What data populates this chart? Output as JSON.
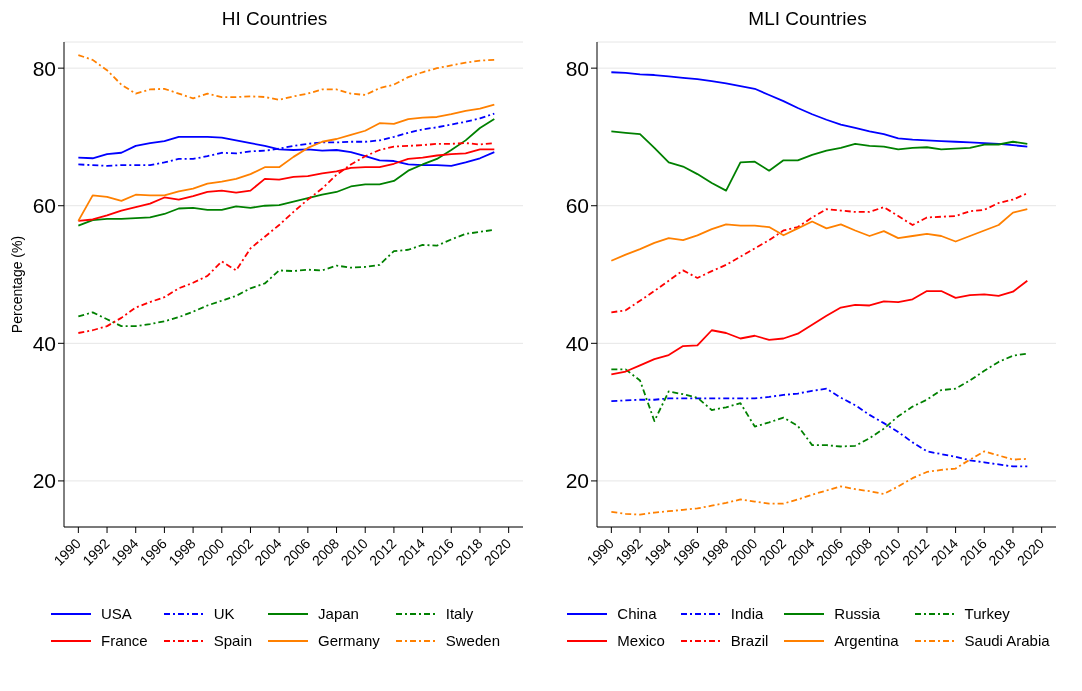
{
  "chart_data": [
    {
      "type": "line",
      "title": "HI Countries",
      "ylabel": "Percentage (%)",
      "grid": "y",
      "legend": "bottom",
      "x": [
        1990,
        1991,
        1992,
        1993,
        1994,
        1995,
        1996,
        1997,
        1998,
        1999,
        2000,
        2001,
        2002,
        2003,
        2004,
        2005,
        2006,
        2007,
        2008,
        2009,
        2010,
        2011,
        2012,
        2013,
        2014,
        2015,
        2016,
        2017,
        2018,
        2019
      ],
      "xlim": [
        1989,
        2021
      ],
      "xticks": [
        1990,
        1992,
        1994,
        1996,
        1998,
        2000,
        2002,
        2004,
        2006,
        2008,
        2010,
        2012,
        2014,
        2016,
        2018,
        2020
      ],
      "ylim": [
        13.3,
        83.8
      ],
      "yticks": [
        20,
        40,
        60,
        80
      ],
      "series": [
        {
          "name": "USA",
          "color": "#0000ff",
          "line_style": "solid",
          "values": [
            67.0,
            66.9,
            67.5,
            67.7,
            68.7,
            69.1,
            69.4,
            70.0,
            70.0,
            70.0,
            69.9,
            69.5,
            69.1,
            68.7,
            68.2,
            68.1,
            68.2,
            68.0,
            68.1,
            67.8,
            67.2,
            66.6,
            66.5,
            66.0,
            65.9,
            65.9,
            65.8,
            66.3,
            66.9,
            67.8
          ]
        },
        {
          "name": "UK",
          "color": "#0000ff",
          "line_style": "dashdot",
          "values": [
            66.0,
            65.9,
            65.8,
            65.9,
            65.9,
            65.9,
            66.3,
            66.8,
            66.8,
            67.2,
            67.7,
            67.6,
            67.9,
            68.0,
            68.3,
            68.7,
            69.0,
            69.2,
            69.2,
            69.3,
            69.3,
            69.5,
            70.0,
            70.6,
            71.1,
            71.4,
            71.8,
            72.2,
            72.7,
            73.4
          ]
        },
        {
          "name": "Japan",
          "color": "#008000",
          "line_style": "solid",
          "values": [
            57.1,
            57.9,
            58.1,
            58.1,
            58.2,
            58.3,
            58.8,
            59.6,
            59.7,
            59.4,
            59.4,
            59.9,
            59.7,
            60.0,
            60.1,
            60.6,
            61.1,
            61.6,
            62.0,
            62.8,
            63.1,
            63.1,
            63.6,
            65.1,
            66.0,
            66.8,
            68.1,
            69.5,
            71.3,
            72.6
          ]
        },
        {
          "name": "Italy",
          "color": "#008000",
          "line_style": "dashdot",
          "values": [
            43.9,
            44.5,
            43.5,
            42.5,
            42.5,
            42.8,
            43.2,
            43.8,
            44.6,
            45.5,
            46.2,
            46.9,
            48.0,
            48.7,
            50.6,
            50.5,
            50.7,
            50.6,
            51.3,
            51.0,
            51.1,
            51.4,
            53.4,
            53.6,
            54.3,
            54.2,
            55.1,
            55.9,
            56.2,
            56.5
          ]
        },
        {
          "name": "France",
          "color": "#ff0000",
          "line_style": "solid",
          "values": [
            57.8,
            58.0,
            58.6,
            59.3,
            59.8,
            60.3,
            61.2,
            60.9,
            61.4,
            62.0,
            62.2,
            61.9,
            62.2,
            63.9,
            63.8,
            64.2,
            64.3,
            64.7,
            65.0,
            65.5,
            65.6,
            65.6,
            66.1,
            66.8,
            67.0,
            67.3,
            67.5,
            67.6,
            68.2,
            68.2
          ]
        },
        {
          "name": "Spain",
          "color": "#ff0000",
          "line_style": "dashdot",
          "values": [
            41.5,
            41.9,
            42.5,
            43.7,
            45.2,
            46.0,
            46.7,
            48.0,
            48.8,
            49.8,
            51.9,
            50.6,
            53.8,
            55.5,
            57.2,
            59.1,
            60.9,
            62.5,
            64.5,
            66.0,
            67.2,
            68.1,
            68.6,
            68.7,
            68.8,
            69.0,
            69.0,
            69.1,
            68.9,
            69.1
          ]
        },
        {
          "name": "Germany",
          "color": "#ff8000",
          "line_style": "solid",
          "values": [
            57.8,
            61.5,
            61.3,
            60.7,
            61.6,
            61.5,
            61.5,
            62.1,
            62.5,
            63.2,
            63.5,
            63.9,
            64.6,
            65.6,
            65.6,
            67.1,
            68.4,
            69.3,
            69.7,
            70.3,
            70.9,
            72.0,
            71.9,
            72.6,
            72.8,
            72.9,
            73.3,
            73.8,
            74.1,
            74.7
          ]
        },
        {
          "name": "Sweden",
          "color": "#ff8000",
          "line_style": "dashdot",
          "values": [
            81.9,
            81.2,
            79.7,
            77.6,
            76.3,
            76.9,
            77.0,
            76.3,
            75.6,
            76.3,
            75.8,
            75.8,
            75.9,
            75.8,
            75.4,
            75.9,
            76.3,
            76.9,
            76.9,
            76.3,
            76.1,
            77.1,
            77.6,
            78.7,
            79.4,
            80.0,
            80.4,
            80.8,
            81.1,
            81.2
          ]
        }
      ]
    },
    {
      "type": "line",
      "title": "MLI Countries",
      "grid": "y",
      "legend": "bottom",
      "x": [
        1990,
        1991,
        1992,
        1993,
        1994,
        1995,
        1996,
        1997,
        1998,
        1999,
        2000,
        2001,
        2002,
        2003,
        2004,
        2005,
        2006,
        2007,
        2008,
        2009,
        2010,
        2011,
        2012,
        2013,
        2014,
        2015,
        2016,
        2017,
        2018,
        2019
      ],
      "xlim": [
        1989,
        2021
      ],
      "xticks": [
        1990,
        1992,
        1994,
        1996,
        1998,
        2000,
        2002,
        2004,
        2006,
        2008,
        2010,
        2012,
        2014,
        2016,
        2018,
        2020
      ],
      "ylim": [
        13.3,
        83.8
      ],
      "yticks": [
        20,
        40,
        60,
        80
      ],
      "series": [
        {
          "name": "China",
          "color": "#0000ff",
          "line_style": "solid",
          "values": [
            79.4,
            79.3,
            79.1,
            79.0,
            78.8,
            78.6,
            78.4,
            78.1,
            77.8,
            77.4,
            77.0,
            76.1,
            75.2,
            74.2,
            73.3,
            72.5,
            71.8,
            71.3,
            70.8,
            70.4,
            69.8,
            69.6,
            69.5,
            69.4,
            69.3,
            69.2,
            69.1,
            69.0,
            68.8,
            68.6
          ]
        },
        {
          "name": "India",
          "color": "#0000ff",
          "line_style": "dashdot",
          "values": [
            31.6,
            31.7,
            31.8,
            31.8,
            32.0,
            32.0,
            32.0,
            32.0,
            32.0,
            32.0,
            32.0,
            32.2,
            32.5,
            32.7,
            33.1,
            33.4,
            32.1,
            31.0,
            29.6,
            28.4,
            27.1,
            25.6,
            24.3,
            23.9,
            23.5,
            23.0,
            22.7,
            22.4,
            22.1,
            22.1
          ]
        },
        {
          "name": "Russia",
          "color": "#008000",
          "line_style": "solid",
          "values": [
            70.8,
            70.6,
            70.4,
            68.4,
            66.3,
            65.7,
            64.6,
            63.3,
            62.2,
            66.3,
            66.4,
            65.1,
            66.6,
            66.6,
            67.4,
            68.0,
            68.4,
            69.0,
            68.7,
            68.6,
            68.2,
            68.4,
            68.5,
            68.2,
            68.3,
            68.4,
            68.9,
            68.9,
            69.3,
            69.0
          ]
        },
        {
          "name": "Turkey",
          "color": "#008000",
          "line_style": "dashdot",
          "values": [
            36.2,
            36.2,
            34.6,
            28.7,
            33.0,
            32.6,
            32.1,
            30.3,
            30.7,
            31.3,
            27.9,
            28.5,
            29.2,
            28.0,
            25.2,
            25.2,
            25.0,
            25.1,
            26.2,
            27.6,
            29.4,
            30.8,
            31.8,
            33.2,
            33.4,
            34.6,
            36.0,
            37.3,
            38.2,
            38.5
          ]
        },
        {
          "name": "Mexico",
          "color": "#ff0000",
          "line_style": "solid",
          "values": [
            35.5,
            35.9,
            36.8,
            37.7,
            38.3,
            39.6,
            39.7,
            41.9,
            41.5,
            40.7,
            41.1,
            40.5,
            40.7,
            41.4,
            42.7,
            44.0,
            45.2,
            45.6,
            45.5,
            46.1,
            46.0,
            46.4,
            47.6,
            47.6,
            46.6,
            47.0,
            47.1,
            46.9,
            47.5,
            49.1
          ]
        },
        {
          "name": "Brazil",
          "color": "#ff0000",
          "line_style": "dashdot",
          "values": [
            44.5,
            44.8,
            46.2,
            47.6,
            49.1,
            50.6,
            49.5,
            50.5,
            51.4,
            52.6,
            53.8,
            55.0,
            56.4,
            56.9,
            58.3,
            59.5,
            59.3,
            59.1,
            59.1,
            59.8,
            58.5,
            57.2,
            58.3,
            58.4,
            58.5,
            59.2,
            59.4,
            60.4,
            60.9,
            61.8
          ]
        },
        {
          "name": "Argentina",
          "color": "#ff8000",
          "line_style": "solid",
          "values": [
            52.0,
            52.9,
            53.7,
            54.6,
            55.3,
            55.0,
            55.7,
            56.6,
            57.3,
            57.1,
            57.1,
            56.9,
            55.7,
            56.7,
            57.7,
            56.7,
            57.3,
            56.4,
            55.6,
            56.3,
            55.3,
            55.6,
            55.9,
            55.6,
            54.8,
            55.6,
            56.4,
            57.2,
            59.0,
            59.5
          ]
        },
        {
          "name": "Saudi Arabia",
          "color": "#ff8000",
          "line_style": "dashdot",
          "values": [
            15.5,
            15.2,
            15.1,
            15.4,
            15.6,
            15.8,
            16.0,
            16.4,
            16.8,
            17.3,
            17.0,
            16.7,
            16.7,
            17.3,
            18.0,
            18.6,
            19.2,
            18.8,
            18.5,
            18.1,
            19.2,
            20.4,
            21.3,
            21.6,
            21.8,
            23.1,
            24.3,
            23.7,
            23.1,
            23.2
          ]
        }
      ]
    }
  ]
}
